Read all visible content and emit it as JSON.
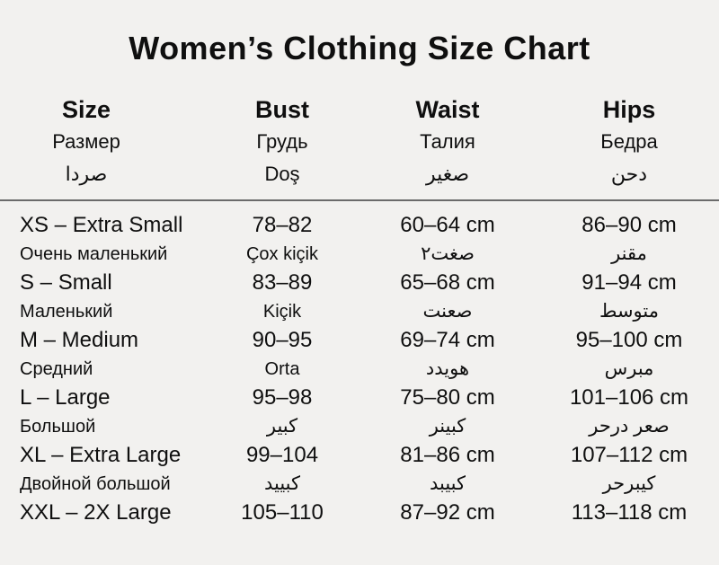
{
  "title": "Women’s Clothing Size Chart",
  "colors": {
    "background": "#f2f1ef",
    "text": "#0f0f0f",
    "divider": "#6b6b6b"
  },
  "header": {
    "size": {
      "en": "Size",
      "ru": "Размер",
      "ar": "صردا"
    },
    "bust": {
      "en": "Bust",
      "ru": "Грудь",
      "ar": "Doş"
    },
    "waist": {
      "en": "Waist",
      "ru": "Талия",
      "ar": "صغير"
    },
    "hips": {
      "en": "Hips",
      "ru": "Бедра",
      "ar": "دحن"
    }
  },
  "rows": [
    {
      "size": "XS – Extra Small",
      "size_sub": "Очень маленький",
      "bust": "78–82",
      "bust_sub": "Çox kiçik",
      "waist": "60–64 cm",
      "waist_sub": "صغت٢",
      "hips": "86–90 cm",
      "hips_sub": "مقنر"
    },
    {
      "size": "S – Small",
      "size_sub": "Маленький",
      "bust": "83–89",
      "bust_sub": "Kiçik",
      "waist": "65–68 cm",
      "waist_sub": "صعنت",
      "hips": "91–94 cm",
      "hips_sub": "متوسط"
    },
    {
      "size": "M – Medium",
      "size_sub": "Средний",
      "bust": "90–95",
      "bust_sub": "Orta",
      "waist": "69–74 cm",
      "waist_sub": "هويدد",
      "hips": "95–100 cm",
      "hips_sub": "مبرس"
    },
    {
      "size": "L – Large",
      "size_sub": "Большой",
      "bust": "95–98",
      "bust_sub": "كبير",
      "waist": "75–80 cm",
      "waist_sub": "كبينر",
      "hips": "101–106 cm",
      "hips_sub": "صعر درحر"
    },
    {
      "size": "XL – Extra Large",
      "size_sub": "Двойной большой",
      "bust": "99–104",
      "bust_sub": "كبييد",
      "waist": "81–86 cm",
      "waist_sub": "كبيبد",
      "hips": "107–112 cm",
      "hips_sub": "كيبرحر"
    },
    {
      "size": "XXL – 2X Large",
      "bust": "105–110",
      "waist": "87–92 cm",
      "hips": "113–118 cm"
    }
  ]
}
